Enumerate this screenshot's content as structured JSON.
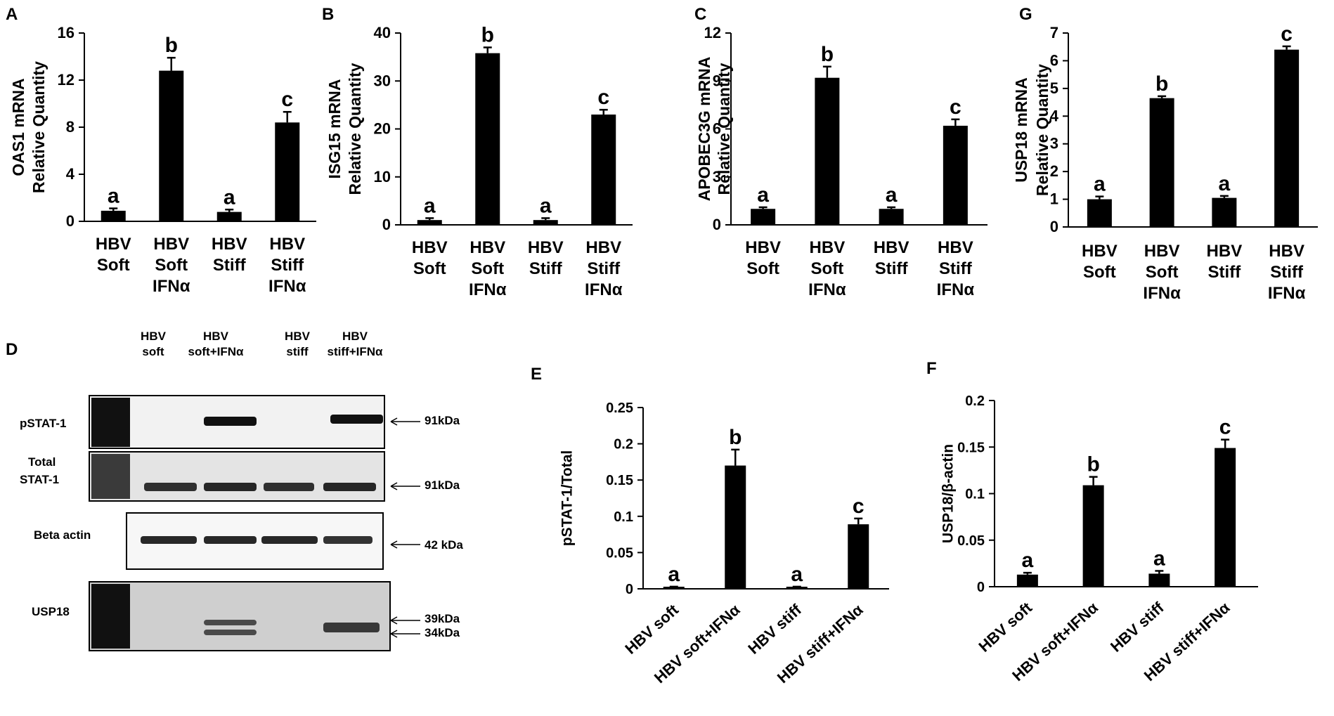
{
  "chart_data": [
    {
      "id": "A",
      "panel_label": "A",
      "type": "bar",
      "ylabel": [
        "OAS1 mRNA",
        "Relative Quantity"
      ],
      "categories": [
        [
          "HBV",
          "Soft"
        ],
        [
          "HBV",
          "Soft",
          "IFNα"
        ],
        [
          "HBV",
          "Stiff"
        ],
        [
          "HBV",
          "Stiff",
          "IFNα"
        ]
      ],
      "values": [
        0.9,
        12.8,
        0.8,
        8.4
      ],
      "errors": [
        0.2,
        1.1,
        0.2,
        0.9
      ],
      "letters": [
        "a",
        "b",
        "a",
        "c"
      ],
      "ylim": [
        0,
        16
      ],
      "yticks": [
        0,
        4,
        8,
        12,
        16
      ],
      "yticklabels": [
        "0",
        "4",
        "8",
        "12",
        "16"
      ]
    },
    {
      "id": "B",
      "panel_label": "B",
      "type": "bar",
      "ylabel": [
        "ISG15 mRNA",
        "Relative Quantity"
      ],
      "categories": [
        [
          "HBV",
          "Soft"
        ],
        [
          "HBV",
          "Soft",
          "IFNα"
        ],
        [
          "HBV",
          "Stiff"
        ],
        [
          "HBV",
          "Stiff",
          "IFNα"
        ]
      ],
      "values": [
        1,
        35.8,
        1,
        23
      ],
      "errors": [
        0.4,
        1.2,
        0.4,
        1.0
      ],
      "letters": [
        "a",
        "b",
        "a",
        "c"
      ],
      "ylim": [
        0,
        40
      ],
      "yticks": [
        0,
        10,
        20,
        30,
        40
      ],
      "yticklabels": [
        "0",
        "10",
        "20",
        "30",
        "40"
      ]
    },
    {
      "id": "C",
      "panel_label": "C",
      "type": "bar",
      "ylabel": [
        "APOBEC3G mRNA",
        "Relative Quantity"
      ],
      "categories": [
        [
          "HBV",
          "Soft"
        ],
        [
          "HBV",
          "Soft",
          "IFNα"
        ],
        [
          "HBV",
          "Stiff"
        ],
        [
          "HBV",
          "Stiff",
          "IFNα"
        ]
      ],
      "values": [
        1,
        9.2,
        1,
        6.2
      ],
      "errors": [
        0.1,
        0.7,
        0.1,
        0.4
      ],
      "letters": [
        "a",
        "b",
        "a",
        "c"
      ],
      "ylim": [
        0,
        12
      ],
      "yticks": [
        0,
        3,
        6,
        9,
        12
      ],
      "yticklabels": [
        "0",
        "3",
        "6",
        "9",
        "12"
      ]
    },
    {
      "id": "G",
      "panel_label": "G",
      "type": "bar",
      "ylabel": [
        "USP18 mRNA",
        "Relative Quantity"
      ],
      "categories": [
        [
          "HBV",
          "Soft"
        ],
        [
          "HBV",
          "Soft",
          "IFNα"
        ],
        [
          "HBV",
          "Stiff"
        ],
        [
          "HBV",
          "Stiff",
          "IFNα"
        ]
      ],
      "values": [
        1,
        4.65,
        1.05,
        6.4
      ],
      "errors": [
        0.1,
        0.07,
        0.07,
        0.12
      ],
      "letters": [
        "a",
        "b",
        "a",
        "c"
      ],
      "ylim": [
        0,
        7
      ],
      "yticks": [
        0,
        1,
        2,
        3,
        4,
        5,
        6,
        7
      ],
      "yticklabels": [
        "0",
        "1",
        "2",
        "3",
        "4",
        "5",
        "6",
        "7"
      ]
    },
    {
      "id": "E",
      "panel_label": "E",
      "type": "bar",
      "ylabel": [
        "pSTAT-1/Total"
      ],
      "categories": [
        [
          "HBV soft"
        ],
        [
          "HBV soft+IFNα"
        ],
        [
          "HBV stiff"
        ],
        [
          "HBV stiff+IFNα"
        ]
      ],
      "values": [
        0.002,
        0.17,
        0.002,
        0.089
      ],
      "errors": [
        0.001,
        0.022,
        0.001,
        0.008
      ],
      "letters": [
        "a",
        "b",
        "a",
        "c"
      ],
      "ylim": [
        0,
        0.25
      ],
      "yticks": [
        0,
        0.05,
        0.1,
        0.15,
        0.2,
        0.25
      ],
      "yticklabels": [
        "0",
        "0.05",
        "0.1",
        "0.15",
        "0.2",
        "0.25"
      ]
    },
    {
      "id": "F",
      "panel_label": "F",
      "type": "bar",
      "ylabel": [
        "USP18/β-actin"
      ],
      "categories": [
        [
          "HBV soft"
        ],
        [
          "HBV soft+IFNα"
        ],
        [
          "HBV stiff"
        ],
        [
          "HBV stiff+IFNα"
        ]
      ],
      "values": [
        0.013,
        0.109,
        0.014,
        0.149
      ],
      "errors": [
        0.002,
        0.009,
        0.003,
        0.009
      ],
      "letters": [
        "a",
        "b",
        "a",
        "c"
      ],
      "ylim": [
        0,
        0.2
      ],
      "yticks": [
        0,
        0.05,
        0.1,
        0.15,
        0.2
      ],
      "yticklabels": [
        "0",
        "0.05",
        "0.1",
        "0.15",
        "0.2"
      ]
    }
  ],
  "blot": {
    "panel_label": "D",
    "lane_headers": [
      [
        "HBV",
        "soft"
      ],
      [
        "HBV",
        "soft+IFNα"
      ],
      [
        "HBV",
        "stiff"
      ],
      [
        "HBV",
        "stiff+IFNα"
      ]
    ],
    "rows": [
      {
        "label": [
          "pSTAT-1"
        ],
        "size_labels": [
          "91kDa"
        ]
      },
      {
        "label": [
          "Total",
          "STAT-1"
        ],
        "size_labels": [
          "91kDa"
        ]
      },
      {
        "label": [
          "Beta actin"
        ],
        "size_labels": [
          "42 kDa"
        ]
      },
      {
        "label": [
          "USP18"
        ],
        "size_labels": [
          "39kDa",
          "34kDa"
        ]
      }
    ]
  }
}
